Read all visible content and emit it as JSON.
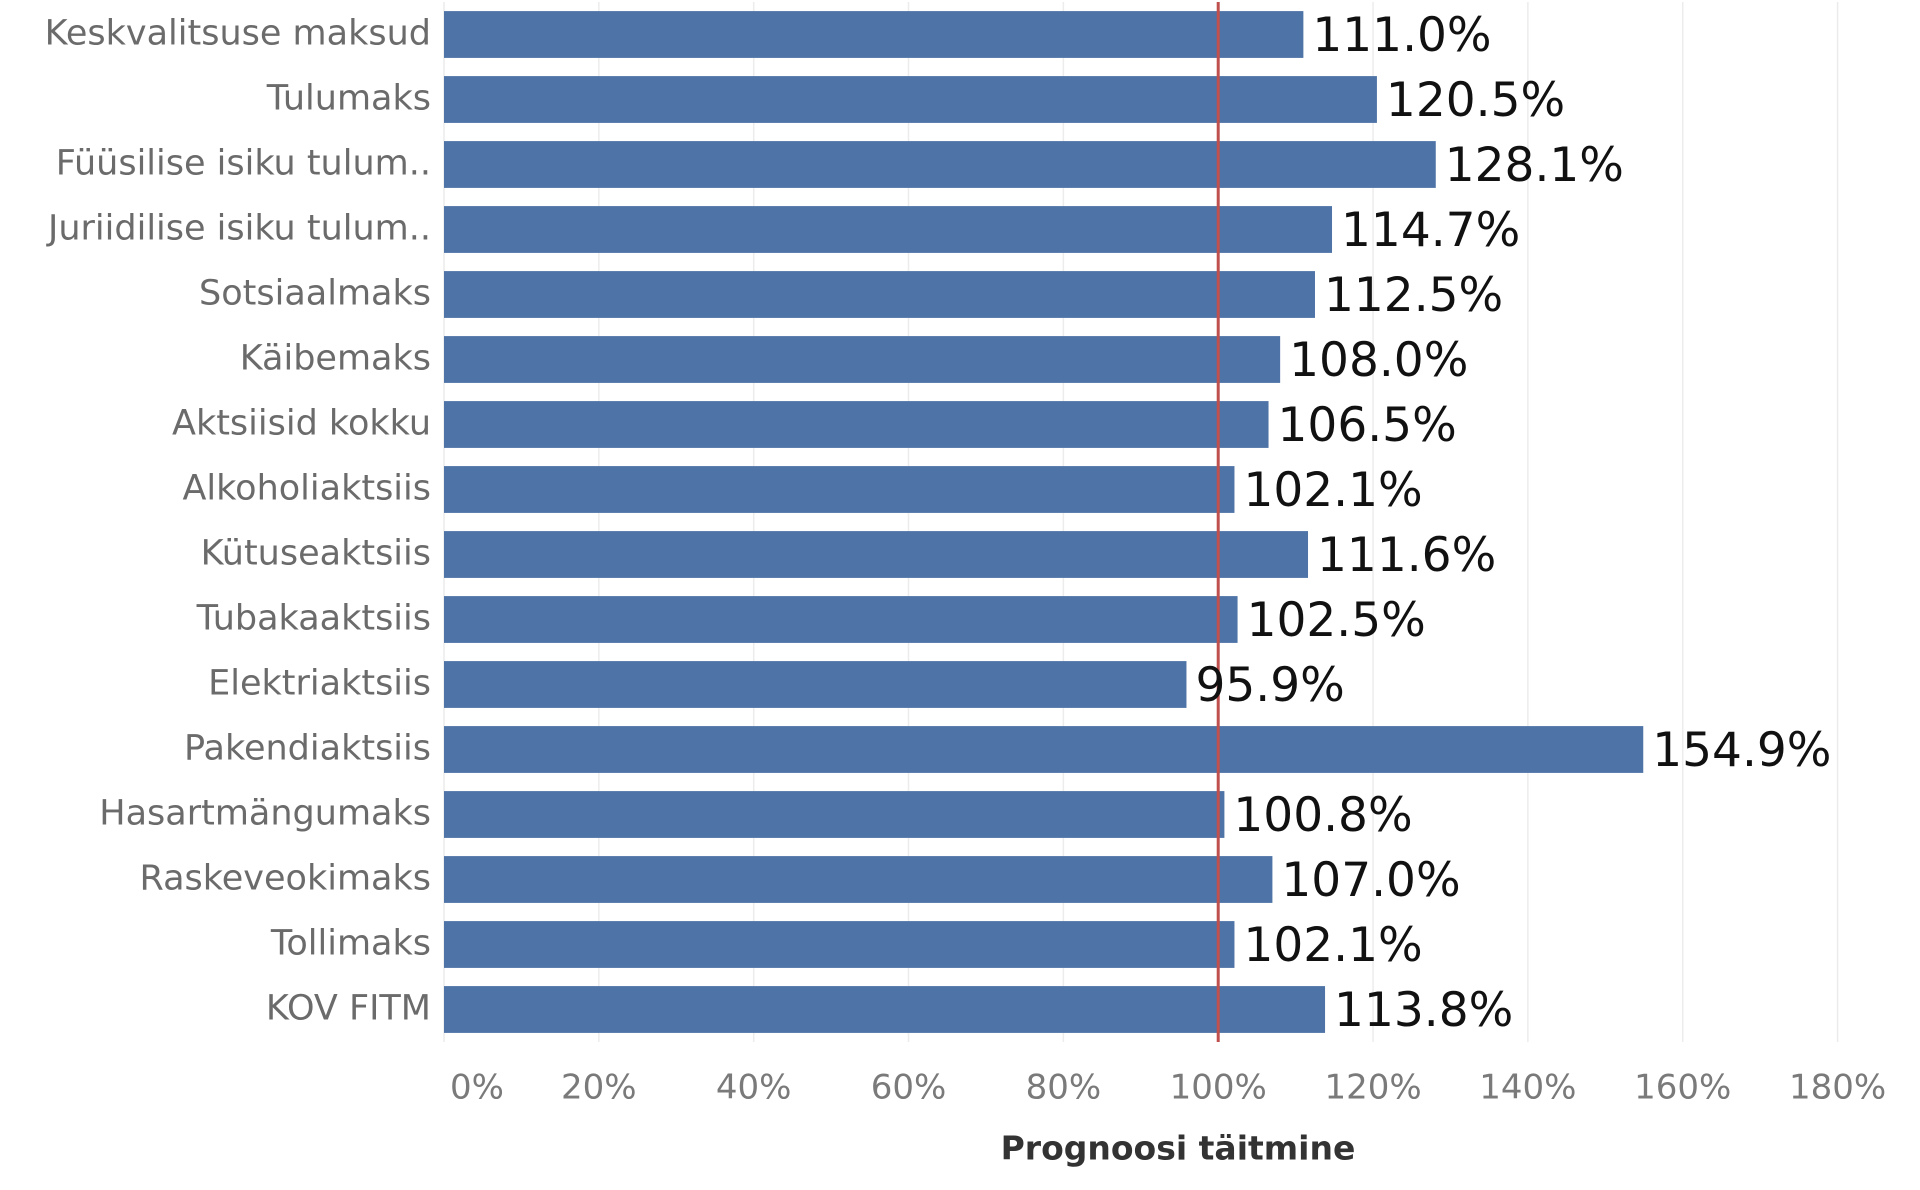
{
  "chart_data": {
    "type": "bar",
    "orientation": "horizontal",
    "categories": [
      "Keskvalitsuse maksud",
      "Tulumaks",
      "Füüsilise isiku tulum..",
      "Juriidilise isiku tulum..",
      "Sotsiaalmaks",
      "Käibemaks",
      "Aktsiisid kokku",
      "Alkoholiaktsiis",
      "Kütuseaktsiis",
      "Tubakaaktsiis",
      "Elektriaktsiis",
      "Pakendiaktsiis",
      "Hasartmängumaks",
      "Raskeveokimaks",
      "Tollimaks",
      "KOV FITM"
    ],
    "values": [
      111.0,
      120.5,
      128.1,
      114.7,
      112.5,
      108.0,
      106.5,
      102.1,
      111.6,
      102.5,
      95.9,
      154.9,
      100.8,
      107.0,
      102.1,
      113.8
    ],
    "value_labels": [
      "111.0%",
      "120.5%",
      "128.1%",
      "114.7%",
      "112.5%",
      "108.0%",
      "106.5%",
      "102.1%",
      "111.6%",
      "102.5%",
      "95.9%",
      "154.9%",
      "100.8%",
      "107.0%",
      "102.1%",
      "113.8%"
    ],
    "color": "#4e73a6",
    "xlabel": "Prognoosi täitmine",
    "xlim": [
      0,
      190
    ],
    "xticks": [
      {
        "value": 0,
        "label": "0%"
      },
      {
        "value": 20,
        "label": "20%"
      },
      {
        "value": 40,
        "label": "40%"
      },
      {
        "value": 60,
        "label": "60%"
      },
      {
        "value": 80,
        "label": "80%"
      },
      {
        "value": 100,
        "label": "100%"
      },
      {
        "value": 120,
        "label": "120%"
      },
      {
        "value": 140,
        "label": "140%"
      },
      {
        "value": 160,
        "label": "160%"
      },
      {
        "value": 180,
        "label": "180%"
      }
    ],
    "grid": true,
    "reference_line": {
      "value": 100,
      "color": "#c0504d"
    }
  }
}
